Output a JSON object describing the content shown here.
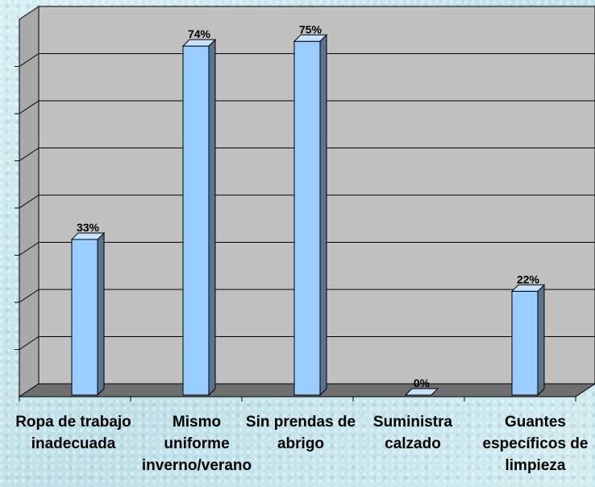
{
  "chart_data": {
    "type": "bar",
    "categories": [
      "Ropa de trabajo\ninadecuada",
      "Mismo\nuniforme\ninverno/verano",
      "Sin prendas de\nabrigo",
      "Suministra\ncalzado",
      "Guantes\nespecíficos de\nlimpieza"
    ],
    "values": [
      33,
      74,
      75,
      0,
      22
    ],
    "value_labels": [
      "33%",
      "74%",
      "75%",
      "0%",
      "22%"
    ],
    "ylim": [
      0,
      80
    ],
    "y_gridlines": 8,
    "grid": true,
    "legend": "none",
    "colors": {
      "bar_front": "#99ccff",
      "bar_side": "#5a7490",
      "bar_top": "#c7e2ff",
      "plot_back": "#c0c0c0",
      "plot_side": "#a9a9a9",
      "floor": "#6f6f6f"
    }
  }
}
